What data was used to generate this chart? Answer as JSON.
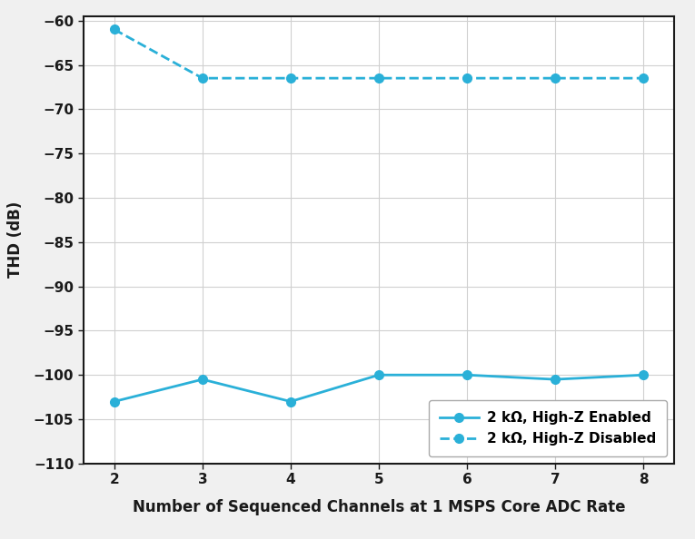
{
  "x": [
    2,
    3,
    4,
    5,
    6,
    7,
    8
  ],
  "highz_enabled": [
    -103,
    -100.5,
    -103,
    -100,
    -100,
    -100.5,
    -100
  ],
  "highz_disabled": [
    -61,
    -66.5,
    -66.5,
    -66.5,
    -66.5,
    -66.5,
    -66.5
  ],
  "xlabel": "Number of Sequenced Channels at 1 MSPS Core ADC Rate",
  "ylabel": "THD (dB)",
  "ylim": [
    -110,
    -59.5
  ],
  "yticks": [
    -110,
    -105,
    -100,
    -95,
    -90,
    -85,
    -80,
    -75,
    -70,
    -65,
    -60
  ],
  "xticks": [
    2,
    3,
    4,
    5,
    6,
    7,
    8
  ],
  "legend_enabled": "2 kΩ, High-Z Enabled",
  "legend_disabled": "2 kΩ, High-Z Disabled",
  "line_color": "#2ab0d8",
  "background_color": "#f0f0f0",
  "plot_bg_color": "#ffffff",
  "grid_color": "#d0d0d0",
  "text_color": "#1a1a1a"
}
